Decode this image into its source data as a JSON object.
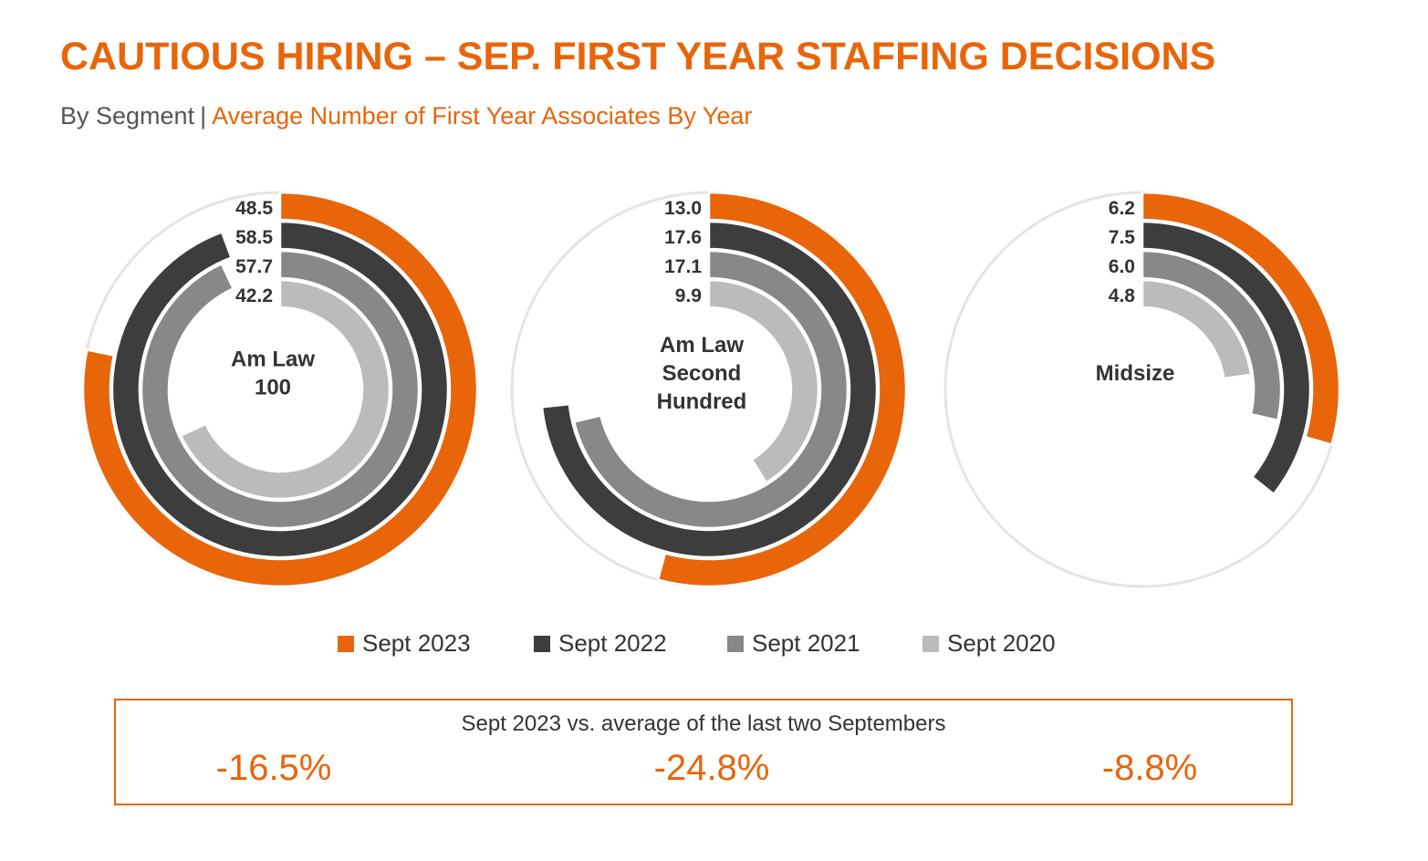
{
  "header": {
    "title": "CAUTIOUS HIRING – SEP. FIRST YEAR STAFFING DECISIONS",
    "subtitle_left": "By Segment",
    "subtitle_separator": "|",
    "subtitle_right": "Average Number of First Year Associates By Year"
  },
  "colors": {
    "sept_2023": "#e8650a",
    "sept_2022": "#3d3d3d",
    "sept_2021": "#888888",
    "sept_2020": "#bbbbbb",
    "track": "#e4e4e4",
    "label": "#333333"
  },
  "chart_data": [
    {
      "type": "radial-bar",
      "title": "",
      "center_label": [
        "Am Law",
        "100"
      ],
      "max_value": 62,
      "series": [
        {
          "name": "Sept 2023",
          "value": 48.5,
          "label": "48.5"
        },
        {
          "name": "Sept 2022",
          "value": 58.5,
          "label": "58.5"
        },
        {
          "name": "Sept 2021",
          "value": 57.7,
          "label": "57.7"
        },
        {
          "name": "Sept 2020",
          "value": 42.2,
          "label": "42.2"
        }
      ]
    },
    {
      "type": "radial-bar",
      "title": "",
      "center_label": [
        "Am Law",
        "Second",
        "Hundred"
      ],
      "max_value": 24,
      "series": [
        {
          "name": "Sept 2023",
          "value": 13.0,
          "label": "13.0"
        },
        {
          "name": "Sept 2022",
          "value": 17.6,
          "label": "17.6"
        },
        {
          "name": "Sept 2021",
          "value": 17.1,
          "label": "17.1"
        },
        {
          "name": "Sept 2020",
          "value": 9.9,
          "label": "9.9"
        }
      ]
    },
    {
      "type": "radial-bar",
      "title": "",
      "center_label": [
        "Midsize"
      ],
      "max_value": 21,
      "series": [
        {
          "name": "Sept 2023",
          "value": 6.2,
          "label": "6.2"
        },
        {
          "name": "Sept 2022",
          "value": 7.5,
          "label": "7.5"
        },
        {
          "name": "Sept 2021",
          "value": 6.0,
          "label": "6.0"
        },
        {
          "name": "Sept 2020",
          "value": 4.8,
          "label": "4.8"
        }
      ]
    }
  ],
  "legend": [
    {
      "label": "Sept 2023",
      "color": "#e8650a"
    },
    {
      "label": "Sept 2022",
      "color": "#3d3d3d"
    },
    {
      "label": "Sept 2021",
      "color": "#888888"
    },
    {
      "label": "Sept 2020",
      "color": "#bbbbbb"
    }
  ],
  "summary": {
    "label": "Sept 2023 vs. average of the last two Septembers",
    "values": [
      "-16.5%",
      "-24.8%",
      "-8.8%"
    ]
  }
}
